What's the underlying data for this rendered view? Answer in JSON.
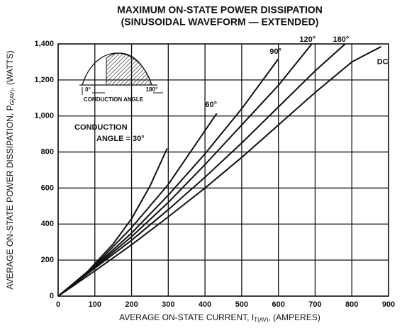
{
  "chart_data": {
    "type": "line",
    "title": [
      "MAXIMUM ON-STATE POWER DISSIPATION",
      "(SINUSOIDAL WAVEFORM — EXTENDED)"
    ],
    "x_label": [
      "AVERAGE ON-STATE CURRENT, I",
      "T(AV)",
      ", (AMPERES)"
    ],
    "y_label": [
      "AVERAGE ON-STATE POWER DISSIPATION, P",
      "G(AV)",
      ", (WATTS)"
    ],
    "xlim": [
      0,
      900
    ],
    "ylim": [
      0,
      1400
    ],
    "xticks": [
      0,
      100,
      200,
      300,
      400,
      500,
      600,
      700,
      800,
      900
    ],
    "yticks": [
      0,
      200,
      400,
      600,
      800,
      {
        "value": 1000,
        "label": "1,000"
      },
      {
        "value": 1200,
        "label": "1,200"
      },
      {
        "value": 1400,
        "label": "1,400"
      }
    ],
    "grid": true,
    "color": "#111111",
    "annotations": [
      "CONDUCTION",
      "ANGLE = 30°"
    ],
    "inset": {
      "start": "0°",
      "end": "180°",
      "caption": "CONDUCTION  ANGLE"
    },
    "series": [
      {
        "x": [
          0,
          50,
          100,
          150,
          200,
          250,
          297
        ],
        "values": [
          0,
          70,
          180,
          290,
          430,
          610,
          820
        ]
      },
      {
        "name": "60°",
        "x": [
          0,
          100,
          200,
          300,
          432
        ],
        "values": [
          0,
          170,
          380,
          620,
          1014
        ]
      },
      {
        "name": "90°",
        "x": [
          0,
          100,
          200,
          300,
          400,
          500,
          600
        ],
        "values": [
          0,
          165,
          350,
          560,
          790,
          1040,
          1317
        ]
      },
      {
        "name": "120°",
        "x": [
          0,
          100,
          200,
          300,
          400,
          500,
          600,
          691
        ],
        "values": [
          0,
          160,
          330,
          520,
          730,
          950,
          1170,
          1400
        ]
      },
      {
        "name": "180°",
        "x": [
          0,
          100,
          200,
          300,
          400,
          500,
          600,
          700,
          782
        ],
        "values": [
          0,
          155,
          310,
          480,
          660,
          850,
          1050,
          1250,
          1400
        ]
      },
      {
        "name": "DC",
        "x": [
          0,
          100,
          200,
          300,
          400,
          500,
          600,
          700,
          800,
          880
        ],
        "values": [
          0,
          140,
          285,
          440,
          600,
          770,
          950,
          1130,
          1300,
          1385
        ]
      }
    ]
  }
}
